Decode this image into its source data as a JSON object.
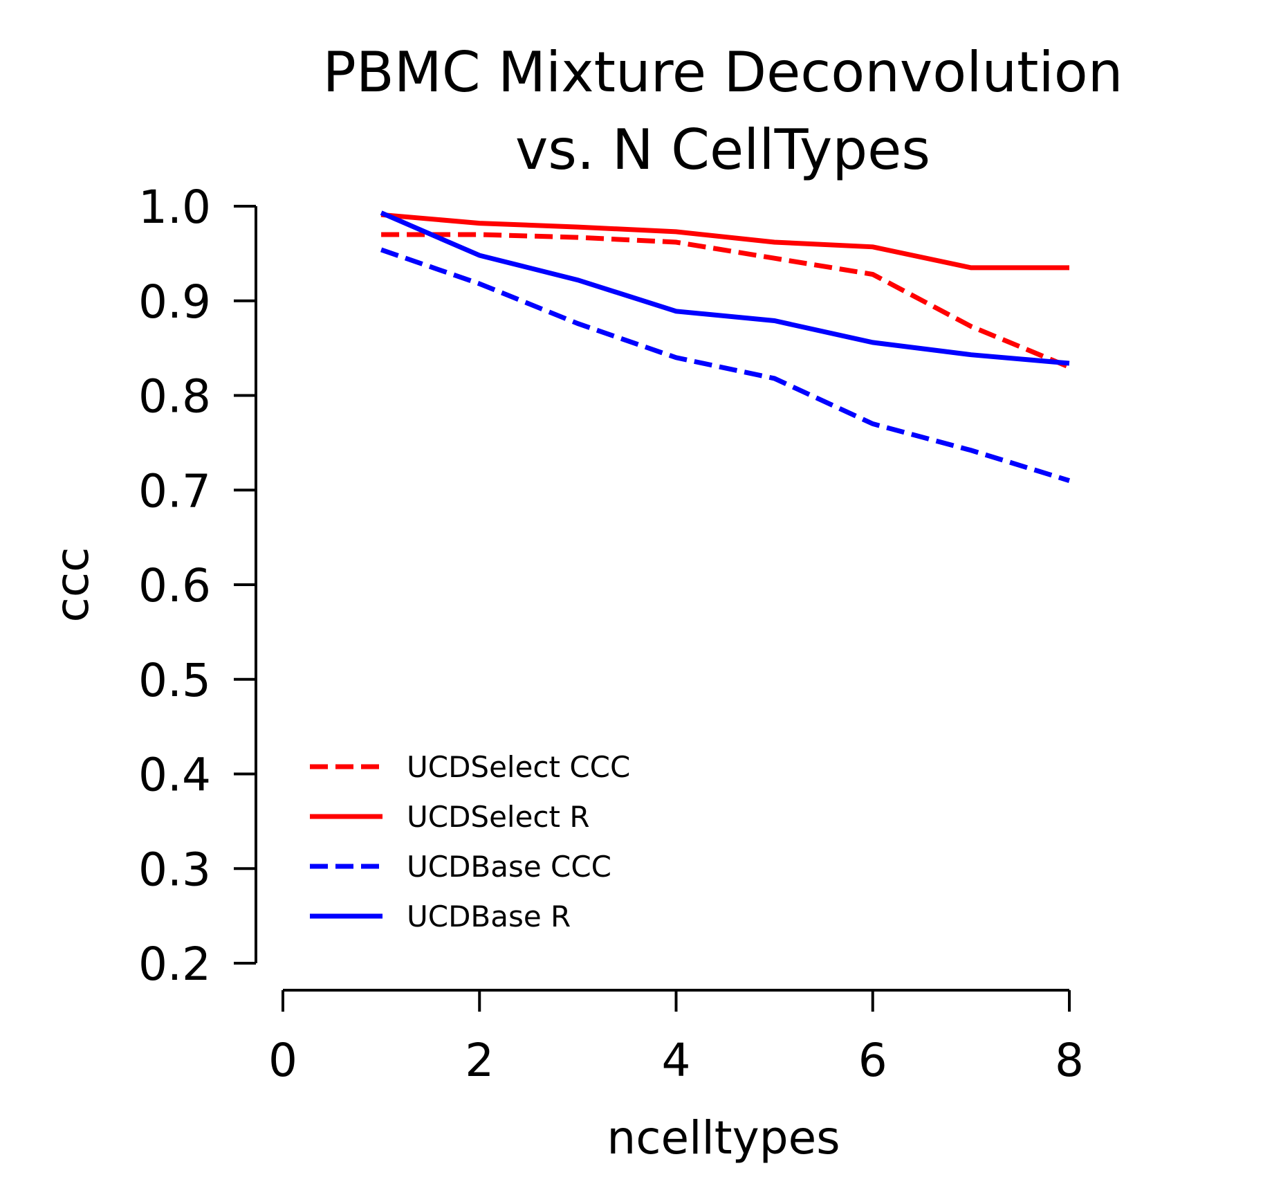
{
  "chart_data": {
    "type": "line",
    "title_lines": [
      "PBMC Mixture Deconvolution",
      "vs. N CellTypes"
    ],
    "xlabel": "ncelltypes",
    "ylabel": "ccc",
    "xlim": [
      0,
      8
    ],
    "ylim": [
      0.2,
      1.0
    ],
    "xticks": [
      0,
      2,
      4,
      6,
      8
    ],
    "xtick_labels": [
      "0",
      "2",
      "4",
      "6",
      "8"
    ],
    "yticks": [
      0.2,
      0.3,
      0.4,
      0.5,
      0.6,
      0.7,
      0.8,
      0.9,
      1.0
    ],
    "ytick_labels": [
      "0.2",
      "0.3",
      "0.4",
      "0.5",
      "0.6",
      "0.7",
      "0.8",
      "0.9",
      "1.0"
    ],
    "grid": false,
    "legend_position": "lower-left",
    "x": [
      1,
      2,
      3,
      4,
      5,
      6,
      7,
      8
    ],
    "series": [
      {
        "name": "UCDSelect CCC",
        "color": "#ff0000",
        "style": "dashed",
        "values": [
          0.97,
          0.97,
          0.967,
          0.962,
          0.945,
          0.928,
          0.873,
          0.83
        ]
      },
      {
        "name": "UCDSelect R",
        "color": "#ff0000",
        "style": "solid",
        "values": [
          0.991,
          0.982,
          0.978,
          0.973,
          0.962,
          0.957,
          0.935,
          0.935
        ]
      },
      {
        "name": "UCDBase CCC",
        "color": "#0000ff",
        "style": "dashed",
        "values": [
          0.954,
          0.918,
          0.876,
          0.84,
          0.818,
          0.77,
          0.742,
          0.71
        ]
      },
      {
        "name": "UCDBase R",
        "color": "#0000ff",
        "style": "solid",
        "values": [
          0.993,
          0.948,
          0.922,
          0.889,
          0.879,
          0.856,
          0.843,
          0.834
        ]
      }
    ]
  }
}
